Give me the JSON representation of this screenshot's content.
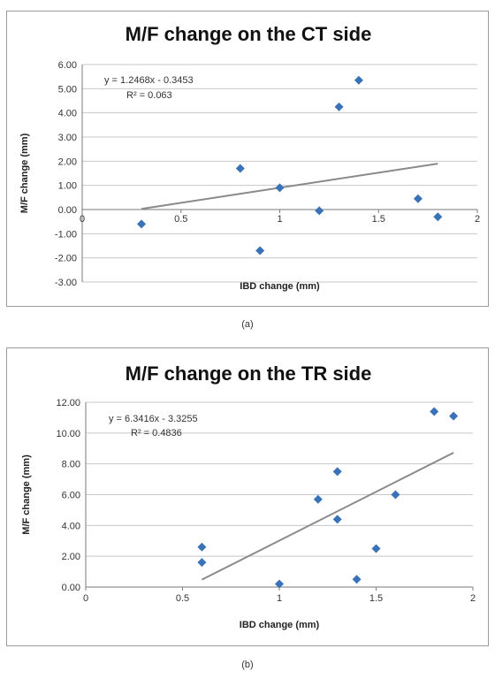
{
  "chart_data": [
    {
      "type": "scatter",
      "title": "M/F change on the CT side",
      "xlabel": "IBD change (mm)",
      "ylabel": "M/F change (mm)",
      "xlim": [
        0,
        2
      ],
      "ylim": [
        -3,
        6
      ],
      "x_ticks": [
        0,
        0.5,
        1,
        1.5,
        2
      ],
      "x_tick_labels": [
        "0",
        "0.5",
        "1",
        "1.5",
        "2"
      ],
      "y_ticks": [
        6,
        5,
        4,
        3,
        2,
        1,
        0,
        -1,
        -2,
        -3
      ],
      "y_tick_labels": [
        "6.00",
        "5.00",
        "4.00",
        "3.00",
        "2.00",
        "1.00",
        "0.00",
        "-1.00",
        "-2.00",
        "-3.00"
      ],
      "grid": "horizontal",
      "x_axis_at_zero": true,
      "marker_color": "#3a72b8",
      "trendline_color": "#8a8a8a",
      "points": [
        {
          "x": 0.3,
          "y": -0.6
        },
        {
          "x": 0.8,
          "y": 1.7
        },
        {
          "x": 0.9,
          "y": -1.7
        },
        {
          "x": 1.0,
          "y": 0.9
        },
        {
          "x": 1.2,
          "y": -0.05
        },
        {
          "x": 1.3,
          "y": 4.25
        },
        {
          "x": 1.4,
          "y": 5.35
        },
        {
          "x": 1.7,
          "y": 0.45
        },
        {
          "x": 1.8,
          "y": -0.3
        }
      ],
      "trendline": {
        "slope": 1.2468,
        "intercept": -0.3453,
        "x_range": [
          0.3,
          1.8
        ]
      },
      "equation_label": "y = 1.2468x - 0.3453",
      "r2_label": "R² = 0.063",
      "caption": "(a)"
    },
    {
      "type": "scatter",
      "title": "M/F change on the TR side",
      "xlabel": "IBD change (mm)",
      "ylabel": "M/F change (mm)",
      "xlim": [
        0,
        2
      ],
      "ylim": [
        0,
        12
      ],
      "x_ticks": [
        0,
        0.5,
        1,
        1.5,
        2
      ],
      "x_tick_labels": [
        "0",
        "0.5",
        "1",
        "1.5",
        "2"
      ],
      "y_ticks": [
        12,
        10,
        8,
        6,
        4,
        2,
        0
      ],
      "y_tick_labels": [
        "12.00",
        "10.00",
        "8.00",
        "6.00",
        "4.00",
        "2.00",
        "0.00"
      ],
      "grid": "horizontal",
      "x_axis_at_zero": true,
      "marker_color": "#3a72b8",
      "trendline_color": "#8a8a8a",
      "points": [
        {
          "x": 0.6,
          "y": 2.6
        },
        {
          "x": 0.6,
          "y": 1.6
        },
        {
          "x": 1.0,
          "y": 0.2
        },
        {
          "x": 1.2,
          "y": 5.7
        },
        {
          "x": 1.3,
          "y": 7.5
        },
        {
          "x": 1.3,
          "y": 4.4
        },
        {
          "x": 1.4,
          "y": 0.5
        },
        {
          "x": 1.5,
          "y": 2.5
        },
        {
          "x": 1.6,
          "y": 6.0
        },
        {
          "x": 1.8,
          "y": 11.4
        },
        {
          "x": 1.9,
          "y": 11.1
        }
      ],
      "trendline": {
        "slope": 6.3416,
        "intercept": -3.3255,
        "x_range": [
          0.6,
          1.9
        ]
      },
      "equation_label": "y = 6.3416x - 3.3255",
      "r2_label": "R² = 0.4836",
      "caption": "(b)"
    }
  ]
}
